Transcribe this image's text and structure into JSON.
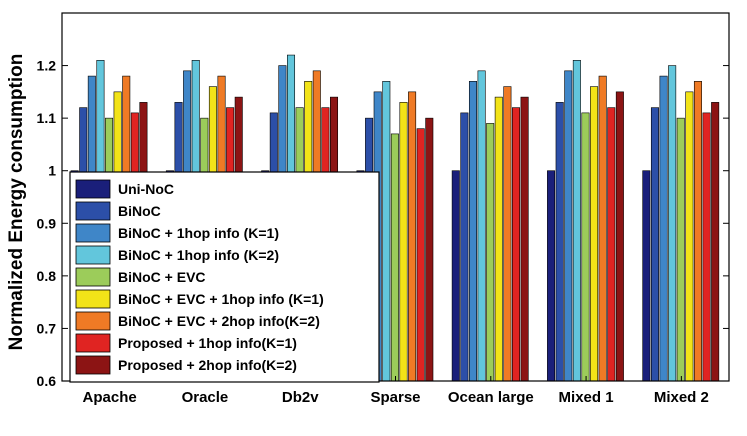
{
  "chart_data": {
    "type": "bar",
    "title": "",
    "xlabel": "",
    "ylabel": "Normalized Energy consumption",
    "ylim": [
      0.6,
      1.3
    ],
    "yticks": [
      0.6,
      0.7,
      0.8,
      0.9,
      1,
      1.1,
      1.2
    ],
    "grid": false,
    "legend_position": "bottom-left",
    "categories": [
      "Apache",
      "Oracle",
      "Db2v",
      "Sparse",
      "Ocean large",
      "Mixed 1",
      "Mixed 2"
    ],
    "series": [
      {
        "name": "Uni-NoC",
        "color": "#1a1f7a",
        "values": [
          1,
          1,
          1,
          1,
          1,
          1,
          1
        ]
      },
      {
        "name": "BiNoC",
        "color": "#2c4fa8",
        "values": [
          1.12,
          1.13,
          1.11,
          1.1,
          1.11,
          1.13,
          1.12
        ]
      },
      {
        "name": "BiNoC + 1hop info (K=1)",
        "color": "#3f86c8",
        "values": [
          1.18,
          1.19,
          1.2,
          1.15,
          1.17,
          1.19,
          1.18
        ]
      },
      {
        "name": "BiNoC + 1hop info (K=2)",
        "color": "#62c6dc",
        "values": [
          1.21,
          1.21,
          1.22,
          1.17,
          1.19,
          1.21,
          1.2
        ]
      },
      {
        "name": "BiNoC + EVC",
        "color": "#9ccc5a",
        "values": [
          1.1,
          1.1,
          1.12,
          1.07,
          1.09,
          1.11,
          1.1
        ]
      },
      {
        "name": "BiNoC + EVC + 1hop info (K=1)",
        "color": "#f2e318",
        "values": [
          1.15,
          1.16,
          1.17,
          1.13,
          1.14,
          1.16,
          1.15
        ]
      },
      {
        "name": "BiNoC + EVC + 2hop info(K=2)",
        "color": "#ef7a25",
        "values": [
          1.18,
          1.18,
          1.19,
          1.15,
          1.16,
          1.18,
          1.17
        ]
      },
      {
        "name": "Proposed + 1hop info(K=1)",
        "color": "#e02422",
        "values": [
          1.11,
          1.12,
          1.12,
          1.08,
          1.12,
          1.12,
          1.11
        ]
      },
      {
        "name": "Proposed + 2hop info(K=2)",
        "color": "#8c1414",
        "values": [
          1.13,
          1.14,
          1.14,
          1.1,
          1.14,
          1.15,
          1.13
        ]
      }
    ]
  }
}
